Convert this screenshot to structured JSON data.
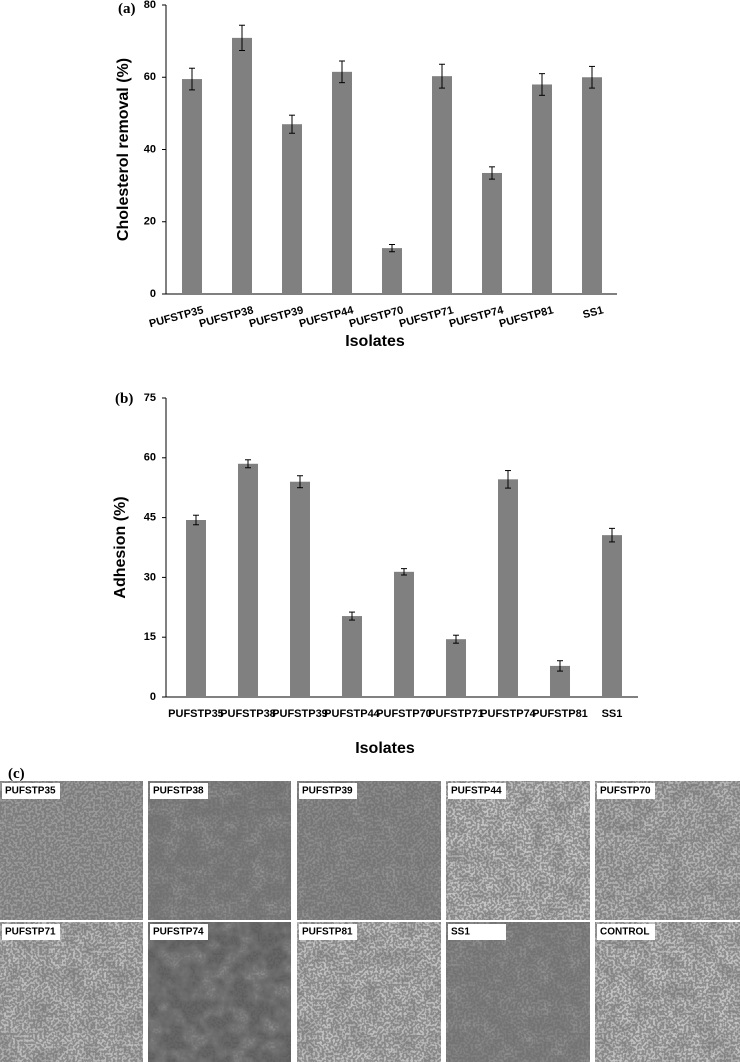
{
  "chart_data": [
    {
      "type": "bar",
      "panel": "(a)",
      "y_label": "Cholesterol removal (%)",
      "x_label": "Isolates",
      "categories": [
        "PUFSTP35",
        "PUFSTP38",
        "PUFSTP39",
        "PUFSTP44",
        "PUFSTP70",
        "PUFSTP71",
        "PUFSTP74",
        "PUFSTP81",
        "SS1"
      ],
      "series": [
        {
          "color": "#808080",
          "values": [
            59.5,
            70.9,
            47,
            61.5,
            12.7,
            60.3,
            33.5,
            58,
            60
          ],
          "errors": [
            3,
            3.5,
            2.5,
            3,
            1,
            3.3,
            1.7,
            3,
            3
          ]
        }
      ],
      "ylim": [
        0,
        80
      ],
      "yticks": [
        0,
        20,
        40,
        60,
        80
      ],
      "grid": false
    },
    {
      "type": "bar",
      "panel": "(b)",
      "y_label": "Adhesion (%)",
      "x_label": "Isolates",
      "categories": [
        "PUFSTP35",
        "PUFSTP38",
        "PUFSTP39",
        "PUFSTP44",
        "PUFSTP70",
        "PUFSTP71",
        "PUFSTP74",
        "PUFSTP81",
        "SS1"
      ],
      "series": [
        {
          "color": "#808080",
          "values": [
            44.4,
            58.5,
            54,
            20.3,
            31.4,
            14.5,
            54.6,
            7.8,
            40.6
          ],
          "errors": [
            1.2,
            1,
            1.5,
            1,
            0.8,
            1,
            2.2,
            1.3,
            1.7
          ]
        }
      ],
      "ylim": [
        0,
        75
      ],
      "yticks": [
        0,
        15,
        30,
        45,
        60,
        75
      ],
      "grid": false
    }
  ],
  "micrographs": {
    "panel": "(c)",
    "labels": [
      "PUFSTP35",
      "PUFSTP38",
      "PUFSTP39",
      "PUFSTP44",
      "PUFSTP70",
      "PUFSTP71",
      "PUFSTP74",
      "PUFSTP81",
      "SS1",
      "CONTROL"
    ]
  }
}
